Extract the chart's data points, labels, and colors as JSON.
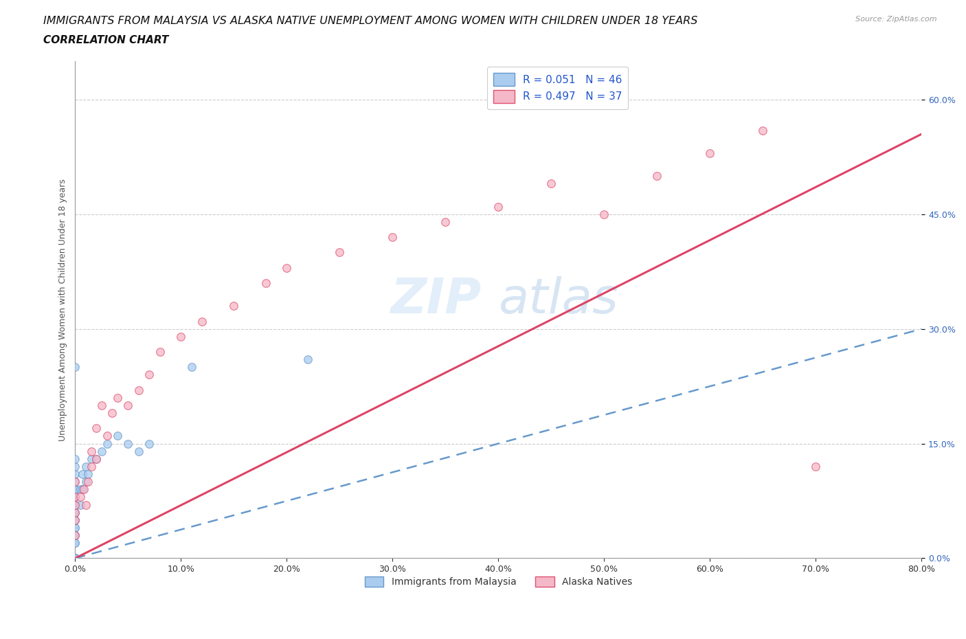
{
  "title": "IMMIGRANTS FROM MALAYSIA VS ALASKA NATIVE UNEMPLOYMENT AMONG WOMEN WITH CHILDREN UNDER 18 YEARS",
  "subtitle": "CORRELATION CHART",
  "source": "Source: ZipAtlas.com",
  "ylabel": "Unemployment Among Women with Children Under 18 years",
  "xlim": [
    0.0,
    0.8
  ],
  "ylim": [
    0.0,
    0.65
  ],
  "xticks": [
    0.0,
    0.1,
    0.2,
    0.3,
    0.4,
    0.5,
    0.6,
    0.7,
    0.8
  ],
  "yticks": [
    0.0,
    0.15,
    0.3,
    0.45,
    0.6
  ],
  "xticklabels": [
    "0.0%",
    "",
    "",
    "",
    "",
    "",
    "",
    "",
    "80.0%"
  ],
  "yticklabels_right": [
    "0.0%",
    "15.0%",
    "30.0%",
    "45.0%",
    "60.0%"
  ],
  "watermark_zip": "ZIP",
  "watermark_atlas": "atlas",
  "legend_label1": "R = 0.051   N = 46",
  "legend_label2": "R = 0.497   N = 37",
  "blue_fill": "#aaccee",
  "blue_edge": "#6699cc",
  "pink_fill": "#f5b8c8",
  "pink_edge": "#e05070",
  "blue_line_color": "#6699cc",
  "pink_line_color": "#dd4466",
  "grid_color": "#cccccc",
  "bg_color": "#ffffff",
  "blue_scatter_x": [
    0.0,
    0.0,
    0.0,
    0.0,
    0.0,
    0.0,
    0.0,
    0.0,
    0.0,
    0.0,
    0.0,
    0.0,
    0.0,
    0.0,
    0.0,
    0.0,
    0.0,
    0.0,
    0.0,
    0.0,
    0.0,
    0.0,
    0.0,
    0.0,
    0.0,
    0.0,
    0.0,
    0.0,
    0.0,
    0.005,
    0.005,
    0.007,
    0.007,
    0.01,
    0.01,
    0.012,
    0.015,
    0.02,
    0.025,
    0.03,
    0.04,
    0.05,
    0.06,
    0.07,
    0.11,
    0.22
  ],
  "blue_scatter_y": [
    0.0,
    0.0,
    0.0,
    0.0,
    0.0,
    0.0,
    0.0,
    0.0,
    0.02,
    0.02,
    0.03,
    0.03,
    0.04,
    0.04,
    0.05,
    0.05,
    0.06,
    0.06,
    0.07,
    0.07,
    0.08,
    0.08,
    0.09,
    0.09,
    0.1,
    0.11,
    0.12,
    0.13,
    0.25,
    0.07,
    0.09,
    0.09,
    0.11,
    0.1,
    0.12,
    0.11,
    0.13,
    0.13,
    0.14,
    0.15,
    0.16,
    0.15,
    0.14,
    0.15,
    0.25,
    0.26
  ],
  "pink_scatter_x": [
    0.0,
    0.0,
    0.0,
    0.0,
    0.0,
    0.0,
    0.005,
    0.008,
    0.01,
    0.012,
    0.015,
    0.015,
    0.02,
    0.02,
    0.025,
    0.03,
    0.035,
    0.04,
    0.05,
    0.06,
    0.07,
    0.08,
    0.1,
    0.12,
    0.15,
    0.18,
    0.2,
    0.25,
    0.3,
    0.35,
    0.4,
    0.45,
    0.5,
    0.55,
    0.6,
    0.65,
    0.7
  ],
  "pink_scatter_y": [
    0.03,
    0.05,
    0.06,
    0.07,
    0.08,
    0.1,
    0.08,
    0.09,
    0.07,
    0.1,
    0.12,
    0.14,
    0.13,
    0.17,
    0.2,
    0.16,
    0.19,
    0.21,
    0.2,
    0.22,
    0.24,
    0.27,
    0.29,
    0.31,
    0.33,
    0.36,
    0.38,
    0.4,
    0.42,
    0.44,
    0.46,
    0.49,
    0.45,
    0.5,
    0.53,
    0.56,
    0.12
  ],
  "blue_line_x0": 0.0,
  "blue_line_y0": 0.0,
  "blue_line_x1": 0.8,
  "blue_line_y1": 0.3,
  "pink_line_x0": 0.0,
  "pink_line_y0": 0.0,
  "pink_line_x1": 0.8,
  "pink_line_y1": 0.555,
  "title_fontsize": 11.5,
  "subtitle_fontsize": 11,
  "ylabel_fontsize": 9,
  "tick_fontsize": 9,
  "legend_fontsize": 11,
  "marker_size": 70
}
